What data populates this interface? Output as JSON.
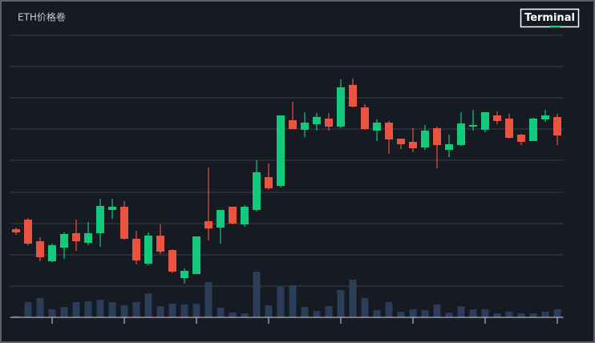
{
  "chart_data": {
    "type": "candlestick",
    "title": "ETH价格卷",
    "badge": "Terminal",
    "x": [
      0,
      1,
      2,
      3,
      4,
      5,
      6,
      7,
      8,
      9,
      10,
      11,
      12,
      13,
      14,
      15,
      16,
      17,
      18,
      19,
      20,
      21,
      22,
      23,
      24,
      25,
      26,
      27,
      28,
      29,
      30,
      31,
      32,
      33,
      34,
      35,
      36,
      37,
      38,
      39,
      40,
      41,
      42,
      43,
      44,
      45
    ],
    "open": [
      110,
      122,
      95,
      70,
      87,
      105,
      93,
      105,
      134,
      138,
      98,
      67,
      102,
      84,
      49,
      54,
      120,
      112,
      138,
      116,
      134,
      175,
      164,
      246,
      234,
      241,
      248,
      238,
      290,
      262,
      233,
      243,
      223,
      219,
      212,
      236,
      209,
      215,
      238,
      234,
      252,
      248,
      228,
      220,
      247,
      250
    ],
    "high": [
      112,
      124,
      100,
      92,
      106,
      122,
      119,
      148,
      148,
      145,
      108,
      106,
      116,
      85,
      61,
      101,
      187,
      134,
      138,
      140,
      196,
      192,
      252,
      269,
      256,
      255,
      255,
      297,
      298,
      266,
      247,
      245,
      223,
      236,
      240,
      238,
      228,
      256,
      259,
      256,
      257,
      254,
      229,
      249,
      259,
      254
    ],
    "low": [
      103,
      90,
      70,
      69,
      73,
      83,
      90,
      88,
      123,
      97,
      66,
      65,
      79,
      55,
      42,
      54,
      96,
      92,
      116,
      113,
      132,
      159,
      162,
      235,
      225,
      233,
      233,
      236,
      262,
      234,
      220,
      204,
      210,
      206,
      209,
      186,
      200,
      214,
      233,
      231,
      241,
      223,
      215,
      220,
      244,
      215
    ],
    "close": [
      106,
      92,
      75,
      90,
      104,
      95,
      105,
      139,
      138,
      98,
      71,
      102,
      82,
      57,
      58,
      101,
      111,
      134,
      117,
      138,
      181,
      161,
      252,
      235,
      243,
      250,
      238,
      287,
      263,
      235,
      243,
      222,
      216,
      211,
      233,
      215,
      216,
      242,
      240,
      256,
      245,
      224,
      219,
      248,
      252,
      227
    ],
    "volume": [
      2,
      19,
      24,
      10,
      13,
      19,
      20,
      22,
      19,
      15,
      19,
      30,
      14,
      17,
      16,
      17,
      44,
      12,
      6,
      5,
      57,
      15,
      38,
      40,
      13,
      8,
      14,
      34,
      47,
      24,
      9,
      19,
      7,
      10,
      9,
      16,
      6,
      14,
      10,
      10,
      5,
      7,
      5,
      5,
      7,
      10
    ],
    "up_color": "#12c97c",
    "down_color": "#e8543f",
    "volume_color": "#2b3d59",
    "xlim": [
      -0.5,
      45.5
    ],
    "xticks": [
      3,
      9,
      15,
      21,
      27,
      33,
      39,
      45
    ],
    "ylim": [
      0,
      352
    ],
    "yticks": [
      0,
      39,
      78,
      117,
      156,
      196,
      235,
      274,
      313,
      352
    ],
    "grid": true
  }
}
